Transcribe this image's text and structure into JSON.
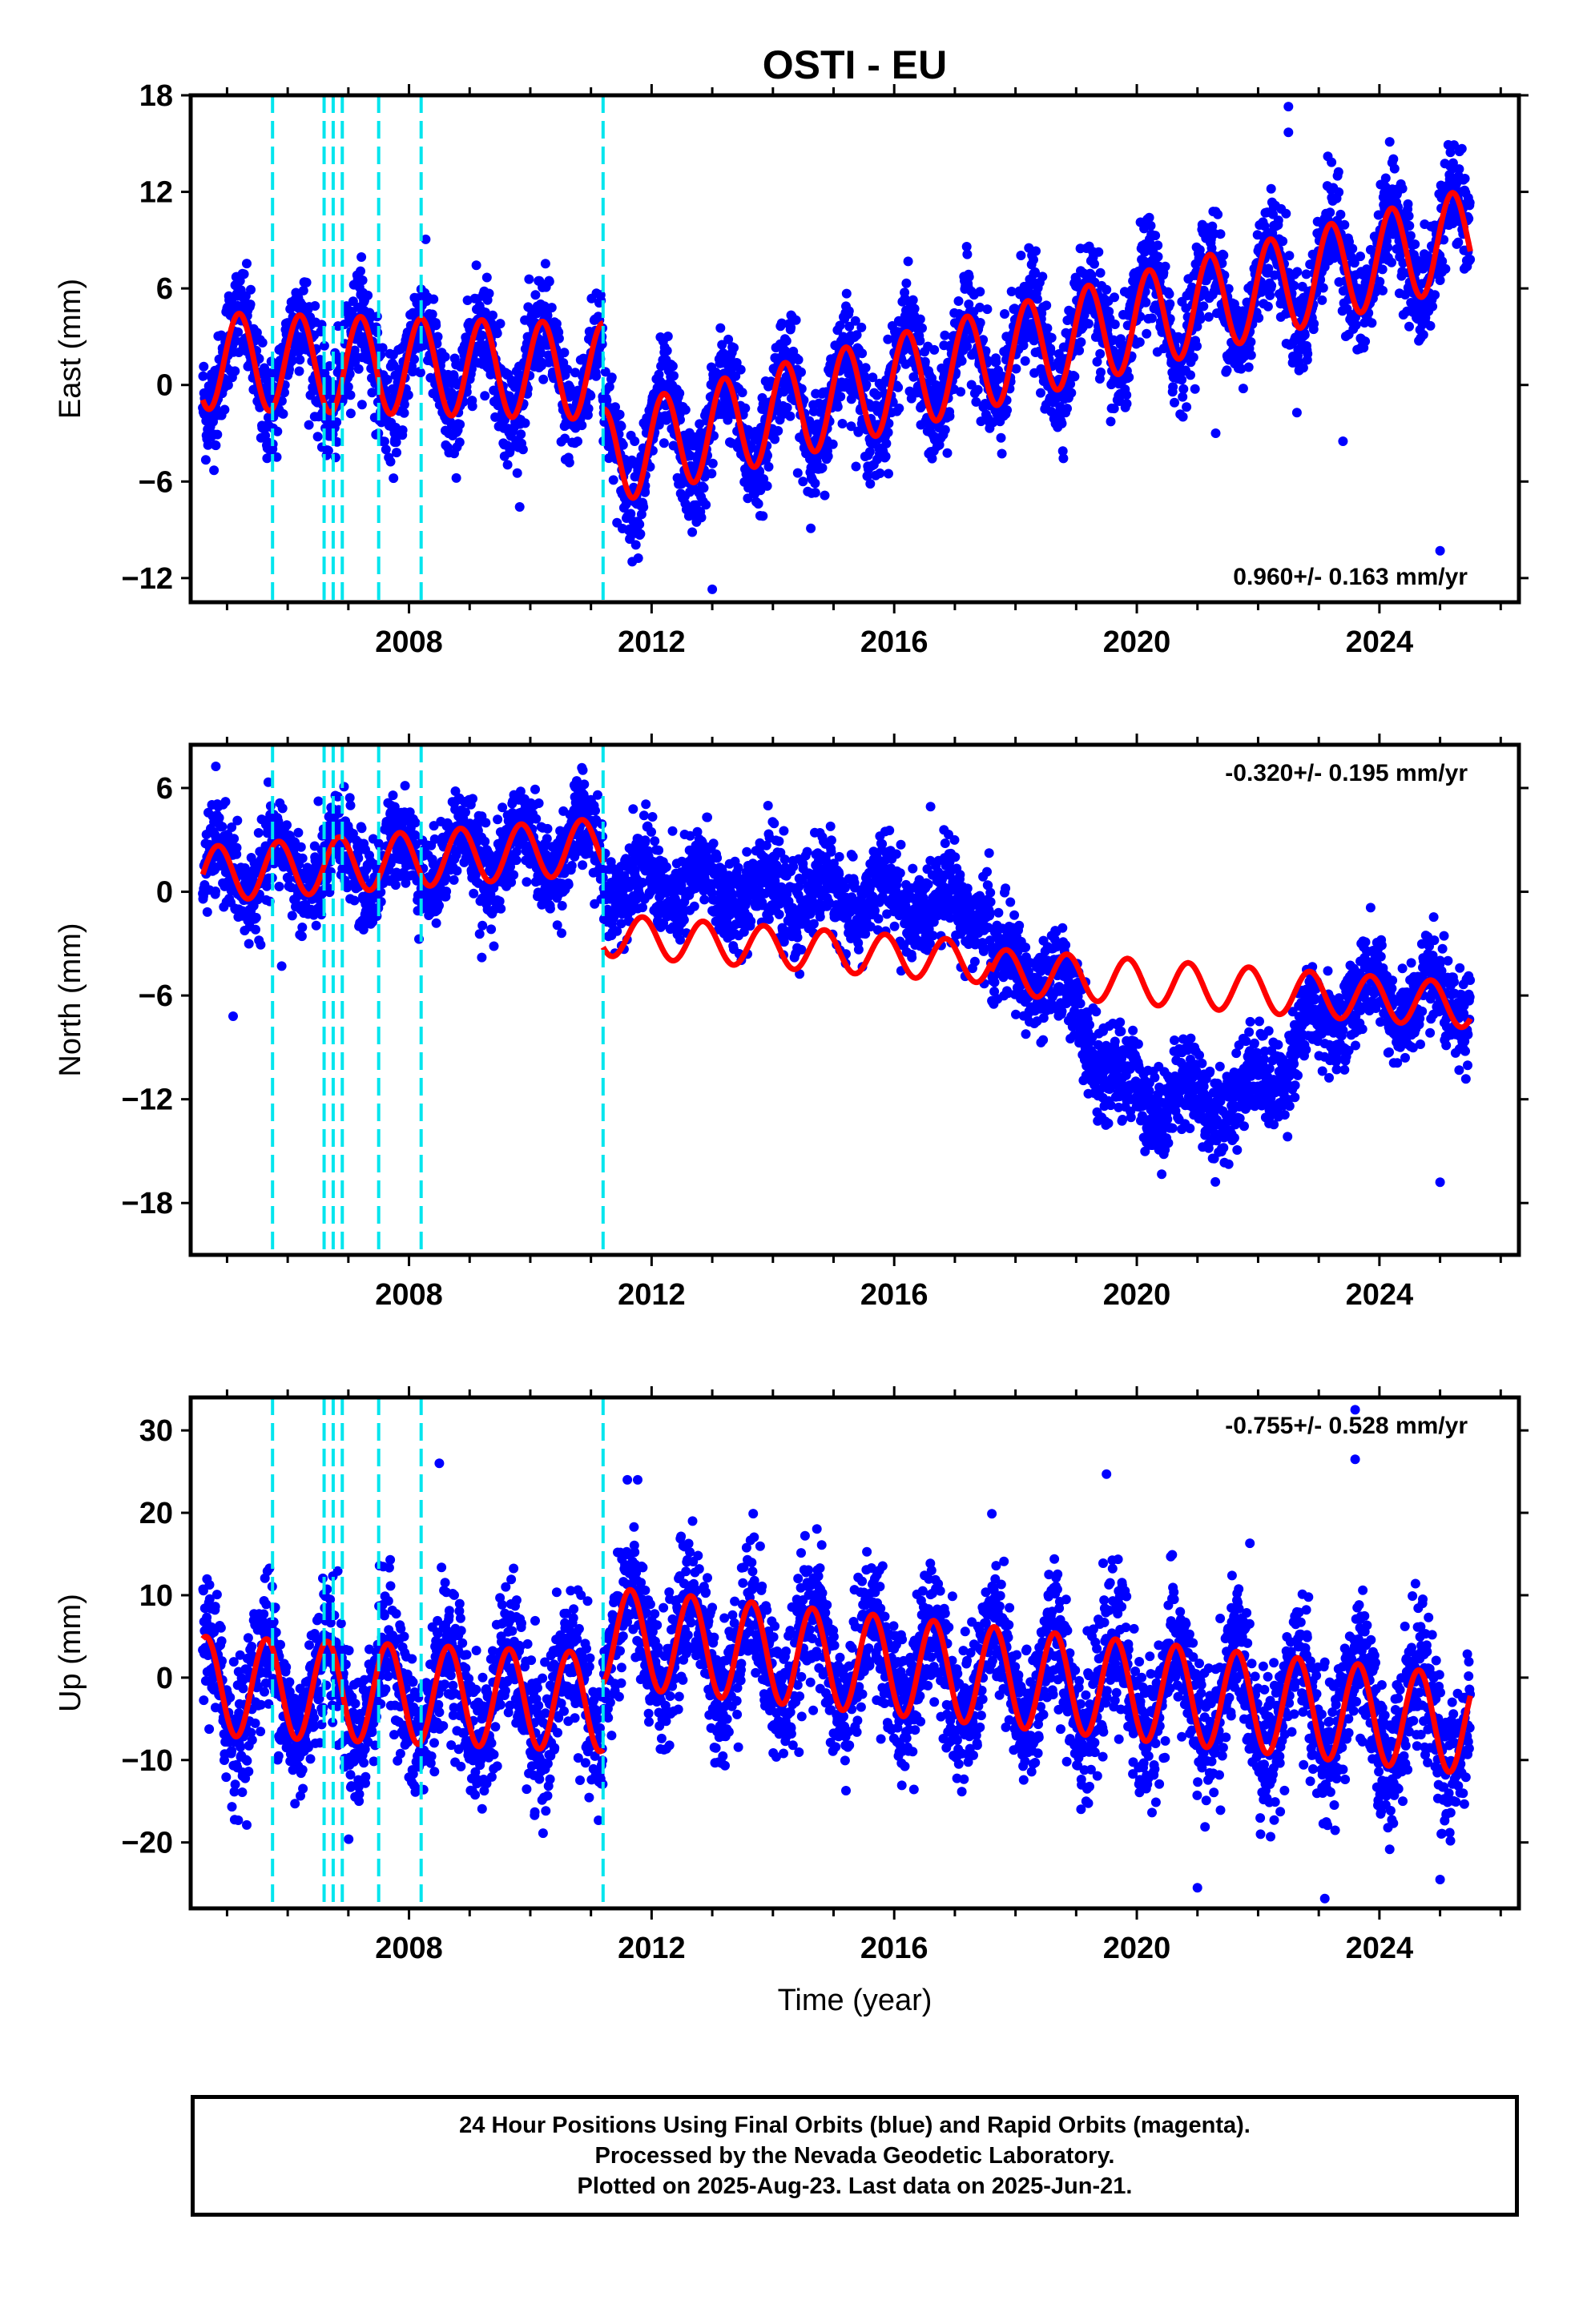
{
  "title": "OSTI - EU",
  "xlabel": "Time (year)",
  "footer": {
    "line1": "24 Hour Positions Using Final Orbits (blue) and Rapid Orbits (magenta).",
    "line2": "Processed by the Nevada Geodetic Laboratory.",
    "line3": "Plotted on 2025-Aug-23. Last data on 2025-Jun-21."
  },
  "colors": {
    "data": "#0000ff",
    "model": "#ff0000",
    "steps": "#00e5ee",
    "axis": "#000000"
  },
  "chart_data": [
    {
      "type": "scatter",
      "name": "east",
      "ylabel": "East (mm)",
      "xlim": [
        2004.4,
        2026.3
      ],
      "ylim": [
        -13.5,
        18
      ],
      "yticks": [
        -12,
        -6,
        0,
        6,
        12,
        18
      ],
      "xticks": [
        2008,
        2012,
        2016,
        2020,
        2024
      ],
      "rate_label": "0.960+/- 0.163 mm/yr",
      "rate_position": "bottom-right",
      "step_epochs": [
        2005.75,
        2006.6,
        2006.75,
        2006.9,
        2007.5,
        2008.2,
        2011.2
      ],
      "model": {
        "segments": [
          {
            "start": 2004.6,
            "end": 2011.2,
            "offset": 1.5,
            "trend": -0.1,
            "amp": 3.0,
            "phase": 0.05
          },
          {
            "start": 2011.2,
            "end": 2025.5,
            "offset": -4.5,
            "trend": 0.96,
            "amp": 3.0,
            "phase": 0.05
          }
        ]
      },
      "data_noise": 1.6,
      "outliers": [
        [
          2022.5,
          17.3
        ],
        [
          2022.5,
          15.7
        ],
        [
          2013.0,
          -12.7
        ],
        [
          2025.0,
          -10.3
        ],
        [
          2021.3,
          -3.0
        ],
        [
          2023.4,
          -3.5
        ]
      ]
    },
    {
      "type": "scatter",
      "name": "north",
      "ylabel": "North (mm)",
      "xlim": [
        2004.4,
        2026.3
      ],
      "ylim": [
        -21,
        8.5
      ],
      "yticks": [
        -18,
        -12,
        -6,
        0,
        6
      ],
      "xticks": [
        2008,
        2012,
        2016,
        2020,
        2024
      ],
      "rate_label": "-0.320+/- 0.195 mm/yr",
      "rate_position": "top-right",
      "step_epochs": [
        2005.75,
        2006.6,
        2006.75,
        2006.9,
        2007.5,
        2008.2,
        2011.2
      ],
      "model": {
        "segments": [
          {
            "start": 2004.6,
            "end": 2011.2,
            "offset": 1.0,
            "trend": 0.25,
            "amp": 1.6,
            "phase": 0.4
          },
          {
            "start": 2011.2,
            "end": 2017.6,
            "offset": -2.5,
            "trend": -0.25,
            "amp": 1.2,
            "phase": 0.4
          },
          {
            "start": 2017.6,
            "end": 2025.5,
            "offset": -4.6,
            "trend": -0.25,
            "amp": 1.3,
            "phase": 0.4
          }
        ]
      },
      "data_noise": 1.3,
      "outliers": [
        [
          2005.1,
          -7.2
        ],
        [
          2009.2,
          -3.8
        ],
        [
          2025.0,
          -16.8
        ],
        [
          2005.9,
          -4.3
        ]
      ]
    },
    {
      "type": "scatter",
      "name": "up",
      "ylabel": "Up (mm)",
      "xlim": [
        2004.4,
        2026.3
      ],
      "ylim": [
        -28,
        34
      ],
      "yticks": [
        -20,
        -10,
        0,
        10,
        20,
        30
      ],
      "xticks": [
        2008,
        2012,
        2016,
        2020,
        2024
      ],
      "rate_label": "-0.755+/- 0.528 mm/yr",
      "rate_position": "top-right",
      "step_epochs": [
        2005.75,
        2006.6,
        2006.75,
        2006.9,
        2007.5,
        2008.2,
        2011.2
      ],
      "model": {
        "segments": [
          {
            "start": 2004.6,
            "end": 2011.2,
            "offset": -1.0,
            "trend": -0.3,
            "amp": 6.0,
            "phase": 0.6
          },
          {
            "start": 2011.2,
            "end": 2025.5,
            "offset": 5.0,
            "trend": -0.75,
            "amp": 6.0,
            "phase": 0.6
          }
        ]
      },
      "data_noise": 4.2,
      "outliers": [
        [
          2023.6,
          32.5
        ],
        [
          2023.6,
          26.5
        ],
        [
          2008.5,
          26.0
        ],
        [
          2019.5,
          24.7
        ],
        [
          2023.1,
          -26.8
        ],
        [
          2021.0,
          -25.5
        ],
        [
          2025.0,
          -24.5
        ],
        [
          2011.6,
          24.0
        ]
      ]
    }
  ]
}
